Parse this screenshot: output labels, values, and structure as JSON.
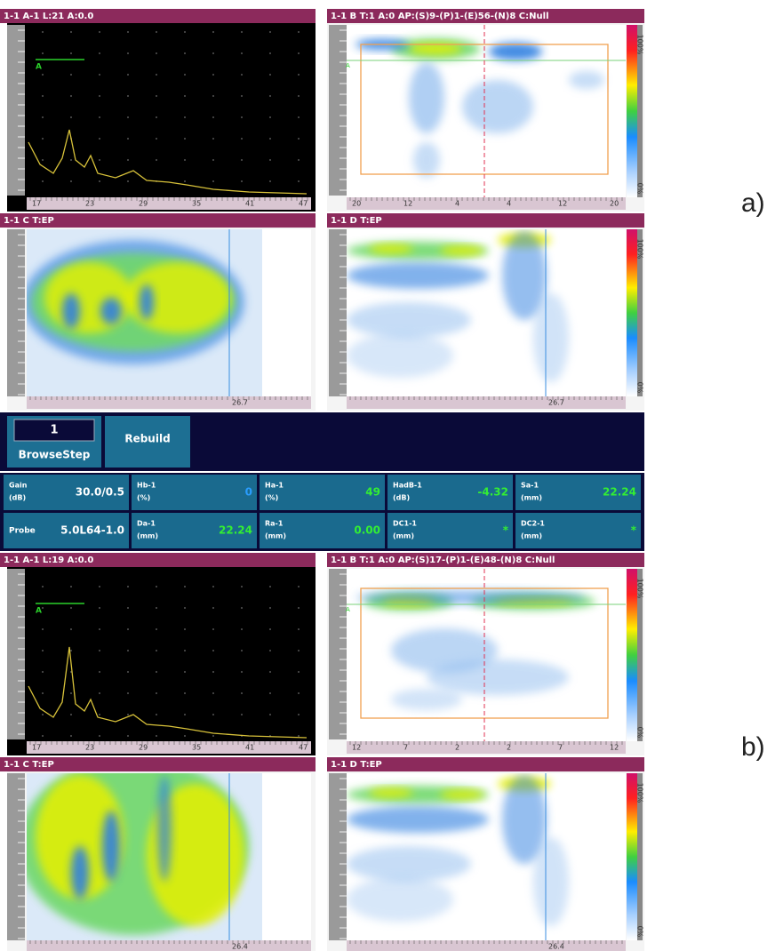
{
  "panel_sets": [
    {
      "label": "a)",
      "a_scan": {
        "header": "1-1 A-1   L:21 A:0.0",
        "gate": "A",
        "ticks": [
          "17",
          "23",
          "29",
          "35",
          "41",
          "47"
        ]
      },
      "b_scan": {
        "header": "1-1 B   T:1 A:0 AP:(S)9-(P)1-(E)56-(N)8 C:Null",
        "gate": "A",
        "ticks": [
          "20",
          "12",
          "4",
          "4",
          "12",
          "20"
        ]
      },
      "c_scan": {
        "header": "1-1 C   T:EP",
        "cursor": "26.7"
      },
      "d_scan": {
        "header": "1-1 D   T:EP",
        "cursor": "26.7"
      }
    },
    {
      "label": "b)",
      "a_scan": {
        "header": "1-1 A-1   L:19 A:0.0",
        "gate": "A",
        "ticks": [
          "17",
          "23",
          "29",
          "35",
          "41",
          "47"
        ]
      },
      "b_scan": {
        "header": "1-1 B   T:1 A:0 AP:(S)17-(P)1-(E)48-(N)8 C:Null",
        "gate": "A",
        "ticks": [
          "12",
          "7",
          "2",
          "2",
          "7",
          "12"
        ]
      },
      "c_scan": {
        "header": "1-1 C   T:EP",
        "cursor": "26.4"
      },
      "d_scan": {
        "header": "1-1 D   T:EP",
        "cursor": "26.4"
      }
    }
  ],
  "colorbar": {
    "max": "100%",
    "min": "0%"
  },
  "controls": {
    "step": "1",
    "step_label": "BrowseStep",
    "rebuild": "Rebuild"
  },
  "params": [
    [
      {
        "name": "Gain",
        "unit": "(dB)",
        "value": "30.0/0.5",
        "color": "#ffffff"
      },
      {
        "name": "Hb-1",
        "unit": "(%)",
        "value": "0",
        "color": "#2a9dff"
      },
      {
        "name": "Ha-1",
        "unit": "(%)",
        "value": "49",
        "color": "#33ee33"
      },
      {
        "name": "HadB-1",
        "unit": "(dB)",
        "value": "-4.32",
        "color": "#33ee33"
      },
      {
        "name": "Sa-1",
        "unit": "(mm)",
        "value": "22.24",
        "color": "#33ee33"
      }
    ],
    [
      {
        "name": "Probe",
        "value": "5.0L64-1.0",
        "color": "#ffffff"
      },
      {
        "name": "Da-1",
        "unit": "(mm)",
        "value": "22.24",
        "color": "#33ee33"
      },
      {
        "name": "Ra-1",
        "unit": "(mm)",
        "value": "0.00",
        "color": "#33ee33"
      },
      {
        "name": "DC1-1",
        "unit": "(mm)",
        "value": "*",
        "color": "#33ee33"
      },
      {
        "name": "DC2-1",
        "unit": "(mm)",
        "value": "*",
        "color": "#33ee33"
      }
    ]
  ]
}
